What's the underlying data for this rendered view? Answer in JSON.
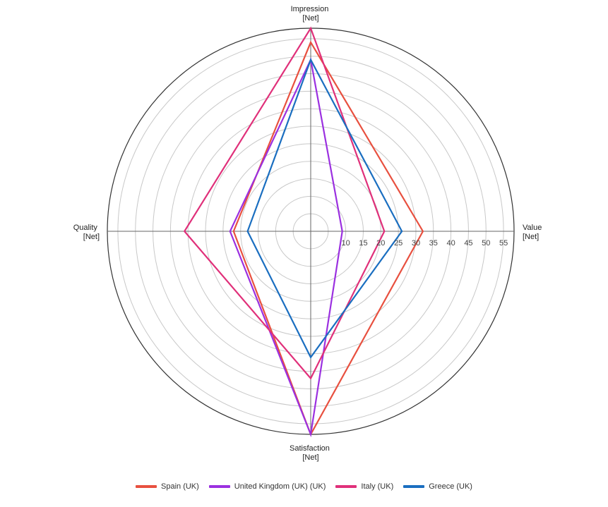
{
  "chart_data": {
    "type": "radar",
    "axes": [
      {
        "label_line1": "Impression",
        "label_line2": "[Net]"
      },
      {
        "label_line1": "Value",
        "label_line2": "[Net]"
      },
      {
        "label_line1": "Satisfaction",
        "label_line2": "[Net]"
      },
      {
        "label_line1": "Quality",
        "label_line2": "[Net]"
      }
    ],
    "radial_min": 0,
    "radial_max": 58,
    "tick_values": [
      10,
      15,
      20,
      25,
      30,
      35,
      40,
      45,
      50,
      55
    ],
    "tick_labels": [
      "10",
      "15",
      "20",
      "25",
      "30",
      "35",
      "40",
      "45",
      "50",
      "55"
    ],
    "series": [
      {
        "name": "Spain (UK)",
        "color": "#e8503f",
        "values": [
          54,
          32,
          58,
          22
        ]
      },
      {
        "name": "United Kingdom (UK) (UK)",
        "color": "#9b30e0",
        "values": [
          49,
          9,
          58,
          23
        ]
      },
      {
        "name": "Italy (UK)",
        "color": "#e0307a",
        "values": [
          58,
          21,
          42,
          36
        ]
      },
      {
        "name": "Greece (UK)",
        "color": "#1a6ec0",
        "values": [
          49,
          26,
          36,
          18
        ]
      }
    ]
  }
}
